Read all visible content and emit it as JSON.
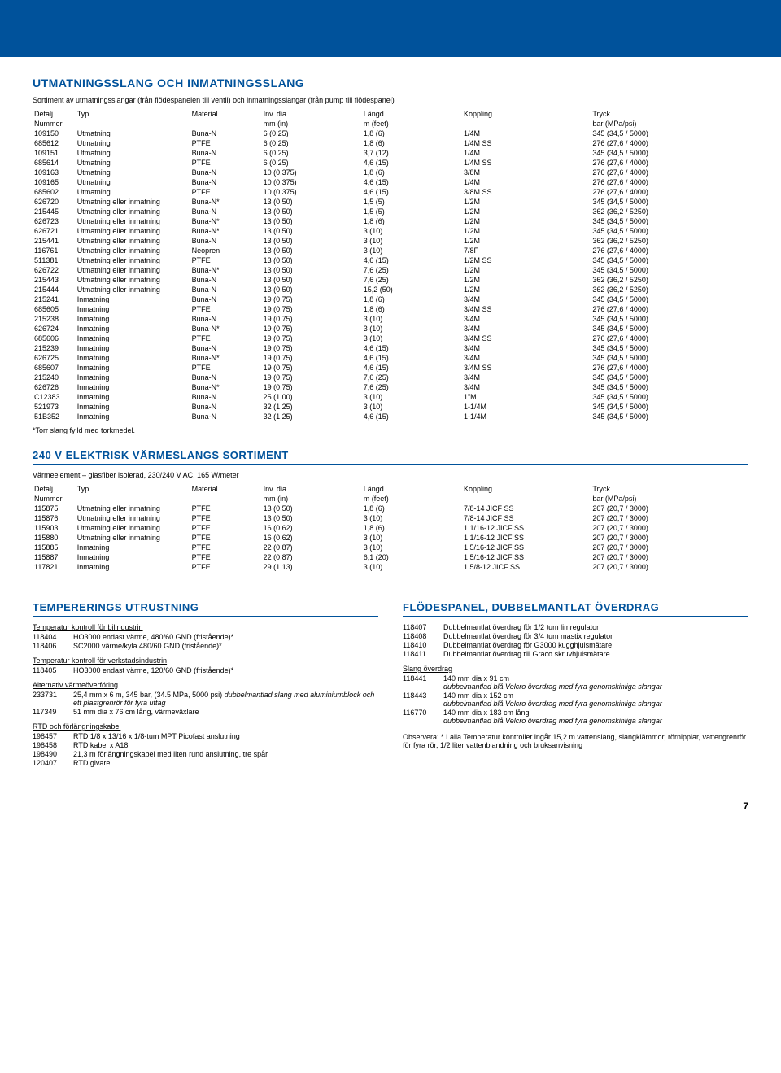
{
  "banner_color": "#00529b",
  "section1": {
    "title": "UTMATNINGSSLANG OCH INMATNINGSSLANG",
    "intro": "Sortiment av utmatningsslangar (från flödespanelen till ventil) och inmatningsslangar (från pump till flödespanel)",
    "headers": {
      "detalj": "Detalj",
      "typ": "Typ",
      "material": "Material",
      "invdia": "Inv. dia.",
      "langd": "Längd",
      "koppling": "Koppling",
      "tryck": "Tryck",
      "nummer": "Nummer",
      "mm": "mm (in)",
      "feet": "m (feet)",
      "bar": "bar (MPa/psi)"
    },
    "rows": [
      [
        "109150",
        "Utmatning",
        "Buna-N",
        "6 (0,25)",
        "1,8 (6)",
        "1/4M",
        "345 (34,5 / 5000)"
      ],
      [
        "685612",
        "Utmatning",
        "PTFE",
        "6 (0,25)",
        "1,8 (6)",
        "1/4M SS",
        "276 (27,6 / 4000)"
      ],
      [
        "109151",
        "Utmatning",
        "Buna-N",
        "6 (0,25)",
        "3,7 (12)",
        "1/4M",
        "345 (34,5 / 5000)"
      ],
      [
        "685614",
        "Utmatning",
        "PTFE",
        "6 (0,25)",
        "4,6 (15)",
        "1/4M SS",
        "276 (27,6 / 4000)"
      ],
      [
        "109163",
        "Utmatning",
        "Buna-N",
        "10 (0,375)",
        "1,8 (6)",
        "3/8M",
        "276 (27,6 / 4000)"
      ],
      [
        "109165",
        "Utmatning",
        "Buna-N",
        "10 (0,375)",
        "4,6 (15)",
        "1/4M",
        "276 (27,6 / 4000)"
      ],
      [
        "685602",
        "Utmatning",
        "PTFE",
        "10 (0,375)",
        "4,6 (15)",
        "3/8M SS",
        "276 (27,6 / 4000)"
      ],
      [
        "626720",
        "Utmatning eller inmatning",
        "Buna-N*",
        "13 (0,50)",
        "1,5 (5)",
        "1/2M",
        "345 (34,5 / 5000)"
      ],
      [
        "215445",
        "Utmatning eller inmatning",
        "Buna-N",
        "13 (0,50)",
        "1,5 (5)",
        "1/2M",
        "362 (36,2 / 5250)"
      ],
      [
        "626723",
        "Utmatning eller inmatning",
        "Buna-N*",
        "13 (0,50)",
        "1,8 (6)",
        "1/2M",
        "345 (34,5 / 5000)"
      ],
      [
        "626721",
        "Utmatning eller inmatning",
        "Buna-N*",
        "13 (0,50)",
        "3 (10)",
        "1/2M",
        "345 (34,5 / 5000)"
      ],
      [
        "215441",
        "Utmatning eller inmatning",
        "Buna-N",
        "13 (0,50)",
        "3 (10)",
        "1/2M",
        "362 (36,2 / 5250)"
      ],
      [
        "116761",
        "Utmatning eller inmatning",
        "Neopren",
        "13 (0,50)",
        "3 (10)",
        "7/8F",
        "276 (27,6 / 4000)"
      ],
      [
        "511381",
        "Utmatning eller inmatning",
        "PTFE",
        "13 (0,50)",
        "4,6 (15)",
        "1/2M SS",
        "345 (34,5 / 5000)"
      ],
      [
        "626722",
        "Utmatning eller inmatning",
        "Buna-N*",
        "13 (0,50)",
        "7,6 (25)",
        "1/2M",
        "345 (34,5 / 5000)"
      ],
      [
        "215443",
        "Utmatning eller inmatning",
        "Buna-N",
        "13 (0,50)",
        "7,6 (25)",
        "1/2M",
        "362 (36,2 / 5250)"
      ],
      [
        "215444",
        "Utmatning eller inmatning",
        "Buna-N",
        "13 (0,50)",
        "15,2 (50)",
        "1/2M",
        "362 (36,2 / 5250)"
      ],
      [
        "215241",
        "Inmatning",
        "Buna-N",
        "19 (0,75)",
        "1,8 (6)",
        "3/4M",
        "345 (34,5 / 5000)"
      ],
      [
        "685605",
        "Inmatning",
        "PTFE",
        "19 (0,75)",
        "1,8 (6)",
        "3/4M SS",
        "276 (27,6 / 4000)"
      ],
      [
        "215238",
        "Inmatning",
        "Buna-N",
        "19 (0,75)",
        "3 (10)",
        "3/4M",
        "345 (34,5 / 5000)"
      ],
      [
        "626724",
        "Inmatning",
        "Buna-N*",
        "19 (0,75)",
        "3 (10)",
        "3/4M",
        "345 (34,5 / 5000)"
      ],
      [
        "685606",
        "Inmatning",
        "PTFE",
        "19 (0,75)",
        "3 (10)",
        "3/4M SS",
        "276 (27,6 / 4000)"
      ],
      [
        "215239",
        "Inmatning",
        "Buna-N",
        "19 (0,75)",
        "4,6 (15)",
        "3/4M",
        "345 (34,5 / 5000)"
      ],
      [
        "626725",
        "Inmatning",
        "Buna-N*",
        "19 (0,75)",
        "4,6 (15)",
        "3/4M",
        "345 (34,5 / 5000)"
      ],
      [
        "685607",
        "Inmatning",
        "PTFE",
        "19 (0,75)",
        "4,6 (15)",
        "3/4M SS",
        "276 (27,6 / 4000)"
      ],
      [
        "215240",
        "Inmatning",
        "Buna-N",
        "19 (0,75)",
        "7,6 (25)",
        "3/4M",
        "345 (34,5 / 5000)"
      ],
      [
        "626726",
        "Inmatning",
        "Buna-N*",
        "19 (0,75)",
        "7,6 (25)",
        "3/4M",
        "345 (34,5 / 5000)"
      ],
      [
        "C12383",
        "Inmatning",
        "Buna-N",
        "25 (1,00)",
        "3 (10)",
        "1\"M",
        "345 (34,5 / 5000)"
      ],
      [
        "521973",
        "Inmatning",
        "Buna-N",
        "32 (1,25)",
        "3 (10)",
        "1-1/4M",
        "345 (34,5 / 5000)"
      ],
      [
        "51B352",
        "Inmatning",
        "Buna-N",
        "32 (1,25)",
        "4,6 (15)",
        "1-1/4M",
        "345 (34,5 / 5000)"
      ]
    ],
    "footnote": "*Torr slang fylld med torkmedel."
  },
  "section2": {
    "title": "240 V ELEKTRISK VÄRMESLANGS SORTIMENT",
    "intro": "Värmeelement – glasfiber isolerad, 230/240 V AC, 165 W/meter",
    "rows": [
      [
        "115875",
        "Utmatning eller inmatning",
        "PTFE",
        "13 (0,50)",
        "1,8 (6)",
        "7/8-14 JICF SS",
        "207 (20,7 / 3000)"
      ],
      [
        "115876",
        "Utmatning eller inmatning",
        "PTFE",
        "13 (0,50)",
        "3 (10)",
        "7/8-14 JICF SS",
        "207 (20,7 / 3000)"
      ],
      [
        "115903",
        "Utmatning eller inmatning",
        "PTFE",
        "16 (0,62)",
        "1,8 (6)",
        "1 1/16-12 JICF SS",
        "207 (20,7 / 3000)"
      ],
      [
        "115880",
        "Utmatning eller inmatning",
        "PTFE",
        "16 (0,62)",
        "3 (10)",
        "1 1/16-12 JICF SS",
        "207 (20,7 / 3000)"
      ],
      [
        "115885",
        "Inmatning",
        "PTFE",
        "22 (0,87)",
        "3 (10)",
        "1 5/16-12 JICF SS",
        "207 (20,7 / 3000)"
      ],
      [
        "115887",
        "Inmatning",
        "PTFE",
        "22 (0,87)",
        "6,1 (20)",
        "1 5/16-12 JICF SS",
        "207 (20,7 / 3000)"
      ],
      [
        "117821",
        "Inmatning",
        "PTFE",
        "29 (1,13)",
        "3 (10)",
        "1 5/8-12 JICF SS",
        "207 (20,7 / 3000)"
      ]
    ]
  },
  "section3": {
    "title": "TEMPERERINGS UTRUSTNING",
    "groups": [
      {
        "heading": "Temperatur kontroll för bilindustrin",
        "items": [
          {
            "id": "118404",
            "desc": "HO3000 endast värme, 480/60 GND (fristående)*",
            "italic": ""
          },
          {
            "id": "118406",
            "desc": "SC2000 värme/kyla 480/60 GND (fristående)*",
            "italic": ""
          }
        ]
      },
      {
        "heading": "Temperatur kontroll för verkstadsindustrin",
        "items": [
          {
            "id": "118405",
            "desc": "HO3000 endast värme, 120/60 GND (fristående)*",
            "italic": ""
          }
        ]
      },
      {
        "heading": "Alternativ värmeöverföring",
        "items": [
          {
            "id": "233731",
            "desc": "25,4 mm x 6 m, 345 bar, (34.5 MPa, 5000 psi) ",
            "italic": "dubbelmantlad slang med aluminiumblock och ett plastgrenrör för fyra uttag"
          },
          {
            "id": "117349",
            "desc": "51 mm dia x 76 cm lång, värmeväxlare",
            "italic": ""
          }
        ]
      },
      {
        "heading": "RTD och förlängningskabel",
        "items": [
          {
            "id": "198457",
            "desc": "RTD 1/8 x 13/16 x 1/8-tum MPT Picofast anslutning",
            "italic": ""
          },
          {
            "id": "198458",
            "desc": "RTD kabel x A18",
            "italic": ""
          },
          {
            "id": "198490",
            "desc": "21,3 m förlängningskabel med liten rund anslutning, tre spår",
            "italic": ""
          },
          {
            "id": "120407",
            "desc": "RTD givare",
            "italic": ""
          }
        ]
      }
    ]
  },
  "section4": {
    "title": "FLÖDESPANEL, DUBBELMANTLAT ÖVERDRAG",
    "top_items": [
      {
        "id": "118407",
        "desc": "Dubbelmantlat överdrag för 1/2 tum limregulator"
      },
      {
        "id": "118408",
        "desc": "Dubbelmantlat överdrag för 3/4 tum mastix regulator"
      },
      {
        "id": "118410",
        "desc": "Dubbelmantlat överdrag för G3000 kugghjulsmätare"
      },
      {
        "id": "118411",
        "desc": "Dubbelmantlat överdrag till Graco skruvhjulsmätare"
      }
    ],
    "slang_heading": "Slang överdrag",
    "slang_items": [
      {
        "id": "118441",
        "desc": "140 mm dia x 91 cm",
        "italic": "dubbelmantlad blå Velcro överdrag med fyra genomskinliga slangar"
      },
      {
        "id": "118443",
        "desc": "140 mm dia x 152 cm",
        "italic": "dubbelmantlad blå Velcro överdrag med fyra genomskinliga slangar"
      },
      {
        "id": "116770",
        "desc": "140 mm dia x 183 cm lång",
        "italic": "dubbelmantlad blå Velcro överdrag med fyra genomskinliga slangar"
      }
    ],
    "note": "Observera: * I alla Temperatur kontroller ingår 15,2 m vattenslang, slangklämmor, rörnipplar, vattengrenrör för fyra rör, 1/2 liter vattenblandning och bruksanvisning"
  },
  "page_number": "7"
}
